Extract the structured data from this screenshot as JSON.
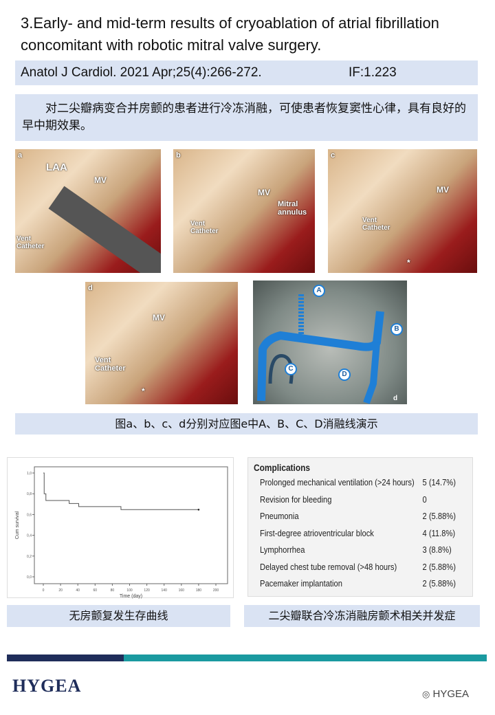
{
  "title": "3.Early- and mid-term results of cryoablation of atrial fibrillation concomitant with robotic mitral valve surgery.",
  "citation": {
    "journal": "Anatol J Cardiol. 2021 Apr;25(4):266-272.",
    "impact_factor": "IF:1.223"
  },
  "summary": "对二尖瓣病变合并房颤的患者进行冷冻消融，可使患者恢复窦性心律，具有良好的早中期效果。",
  "figures": [
    {
      "panel": "a",
      "labels": [
        "LAA",
        "MV",
        "Vent Catheter"
      ]
    },
    {
      "panel": "b",
      "labels": [
        "MV",
        "Mitral annulus",
        "Vent Catheter"
      ]
    },
    {
      "panel": "c",
      "labels": [
        "MV",
        "Vent Catheter",
        "*"
      ]
    },
    {
      "panel": "d",
      "labels": [
        "MV",
        "Vent Catheter",
        "*"
      ]
    },
    {
      "panel": "e",
      "labels": [
        "A",
        "B",
        "C",
        "D",
        "d"
      ]
    }
  ],
  "figure_caption": "图a、b、c、d分别对应图e中A、B、C、D消融线演示",
  "chart_data": {
    "type": "line",
    "xlabel": "Time (day)",
    "ylabel": "Cum survival",
    "xlim": [
      0,
      200
    ],
    "ylim": [
      0,
      1
    ],
    "xticks": [
      "0",
      "20",
      "40",
      "60",
      "80",
      "100",
      "120",
      "140",
      "160",
      "180",
      "200"
    ],
    "yticks": [
      "0,0",
      "0,2",
      "0,4",
      "0,6",
      "0,8",
      "1,0"
    ],
    "series": [
      {
        "step": true,
        "x": [
          0,
          1,
          3,
          30,
          41,
          90,
          180
        ],
        "y": [
          1.0,
          0.8,
          0.735,
          0.706,
          0.676,
          0.647,
          0.647
        ]
      }
    ],
    "censored": [
      {
        "x": 180,
        "y": 0.647
      }
    ],
    "grid": false
  },
  "chart_caption": "无房颤复发生存曲线",
  "complications": {
    "header": "Complications",
    "rows": [
      {
        "name": "Prolonged mechanical ventilation (>24 hours)",
        "value": "5 (14.7%)"
      },
      {
        "name": "Revision for bleeding",
        "value": "0"
      },
      {
        "name": "Pneumonia",
        "value": "2 (5.88%)"
      },
      {
        "name": "First-degree atrioventricular block",
        "value": "4 (11.8%)"
      },
      {
        "name": "Lymphorrhea",
        "value": "3 (8.8%)"
      },
      {
        "name": "Delayed chest tube removal (>48 hours)",
        "value": "2 (5.88%)"
      },
      {
        "name": "Pacemaker implantation",
        "value": "2 (5.88%)"
      }
    ]
  },
  "table_caption": "二尖瓣联合冷冻消融房颤术相关并发症",
  "footer": {
    "logo": "HYGEA",
    "watermark": "HYGEA",
    "colors": {
      "navy": "#1f2d5a",
      "teal": "#1a9aa0"
    }
  }
}
